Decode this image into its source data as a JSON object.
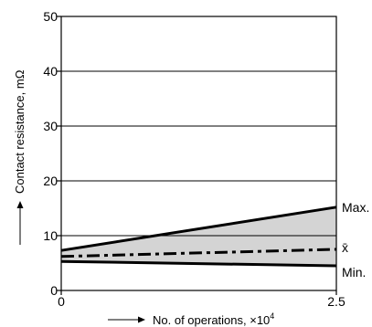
{
  "colors": {
    "line": "#000000",
    "grid": "#000000",
    "band_fill": "#d4d4d4",
    "background": "#ffffff"
  },
  "chart_data": {
    "type": "line",
    "xlabel": "No. of operations, ×10",
    "xlabel_exponent": "4",
    "ylabel": "Contact resistance, mΩ",
    "xlim": [
      0,
      2.5
    ],
    "ylim": [
      0,
      50
    ],
    "x_ticks": [
      {
        "value": 0,
        "label": "0"
      },
      {
        "value": 2.5,
        "label": "2.5"
      }
    ],
    "y_ticks": [
      {
        "value": 0,
        "label": "0"
      },
      {
        "value": 10,
        "label": "10"
      },
      {
        "value": 20,
        "label": "20"
      },
      {
        "value": 30,
        "label": "30"
      },
      {
        "value": 40,
        "label": "40"
      },
      {
        "value": 50,
        "label": "50"
      }
    ],
    "grid": "horizontal",
    "shaded_band_between": [
      "Max.",
      "Min."
    ],
    "series": [
      {
        "name": "Max.",
        "style": "solid",
        "x": [
          0,
          2.5
        ],
        "y": [
          7.3,
          15.2
        ]
      },
      {
        "name": "x̄",
        "style": "dash-dot",
        "x": [
          0,
          2.5
        ],
        "y": [
          6.2,
          7.5
        ]
      },
      {
        "name": "Min.",
        "style": "solid",
        "x": [
          0,
          2.5
        ],
        "y": [
          5.3,
          4.5
        ]
      }
    ]
  }
}
